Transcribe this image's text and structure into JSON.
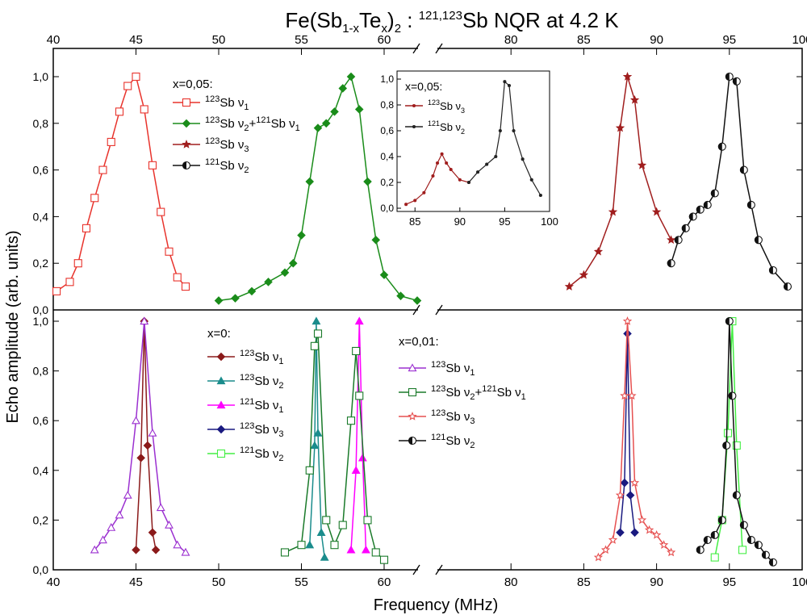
{
  "chart_data": {
    "type": "line",
    "title": {
      "main": "Fe(Sb",
      "sub1": "1-x",
      "mid": "Te",
      "sub2": "x",
      "close": ")",
      "sub3": "2",
      "colon": " : ",
      "sup": "121,123",
      "rest": "Sb NQR at 4.2 K"
    },
    "xlabel": "Frequency (MHz)",
    "ylabel": "Echo amplitude  (arb. units)",
    "axis_break": {
      "left_range": [
        40,
        62
      ],
      "right_range": [
        75,
        100
      ]
    },
    "x_ticks_left": [
      40,
      45,
      50,
      55,
      60
    ],
    "x_ticks_right": [
      80,
      85,
      90,
      95,
      100
    ],
    "y_ticks": [
      "0,0",
      "0,2",
      "0,4",
      "0,6",
      "0,8",
      "1,0"
    ],
    "panels": [
      {
        "name": "top",
        "legend_title": "x=0,05:",
        "legend": [
          {
            "pre": "123",
            "main": "Sb ν",
            "sub": "1",
            "extra": ""
          },
          {
            "pre": "123",
            "main": "Sb ν",
            "sub": "2",
            "extra": "+121Sb ν1"
          },
          {
            "pre": "123",
            "main": "Sb ν",
            "sub": "3",
            "extra": ""
          },
          {
            "pre": "121",
            "main": "Sb ν",
            "sub": "2",
            "extra": ""
          }
        ],
        "series": [
          {
            "color": "#e8332c",
            "marker": "square-open",
            "x": [
              40.2,
              41,
              41.5,
              42,
              42.5,
              43,
              43.5,
              44,
              44.5,
              45,
              45.5,
              46,
              46.5,
              47,
              47.5,
              48
            ],
            "y": [
              0.08,
              0.12,
              0.2,
              0.35,
              0.48,
              0.6,
              0.72,
              0.85,
              0.96,
              1.0,
              0.86,
              0.62,
              0.42,
              0.25,
              0.14,
              0.1
            ]
          },
          {
            "color": "#1a8c1a",
            "marker": "diamond",
            "x": [
              50,
              51,
              52,
              53,
              54,
              54.5,
              55,
              55.5,
              56,
              56.5,
              57,
              57.5,
              58,
              58.5,
              59,
              59.5,
              60,
              61,
              62
            ],
            "y": [
              0.04,
              0.05,
              0.08,
              0.12,
              0.16,
              0.2,
              0.32,
              0.55,
              0.78,
              0.8,
              0.85,
              0.95,
              1.0,
              0.86,
              0.55,
              0.3,
              0.15,
              0.06,
              0.04
            ]
          },
          {
            "color": "#a01e1e",
            "marker": "star",
            "x": [
              84,
              85,
              86,
              87,
              87.5,
              88,
              88.5,
              89,
              90,
              91
            ],
            "y": [
              0.1,
              0.15,
              0.25,
              0.42,
              0.78,
              1.0,
              0.9,
              0.62,
              0.42,
              0.3
            ]
          },
          {
            "color": "#111111",
            "marker": "circle-half",
            "x": [
              91,
              91.5,
              92,
              92.5,
              93,
              93.5,
              94,
              94.5,
              95,
              95.5,
              96,
              96.5,
              97,
              98,
              99
            ],
            "y": [
              0.2,
              0.3,
              0.35,
              0.4,
              0.43,
              0.45,
              0.5,
              0.7,
              1.0,
              0.98,
              0.6,
              0.45,
              0.3,
              0.17,
              0.1
            ]
          }
        ]
      },
      {
        "name": "bottom",
        "legend_title": "x=0:",
        "legend": [
          {
            "pre": "123",
            "main": "Sb ν",
            "sub": "1",
            "extra": ""
          },
          {
            "pre": "123",
            "main": "Sb ν",
            "sub": "2",
            "extra": ""
          },
          {
            "pre": "121",
            "main": "Sb ν",
            "sub": "1",
            "extra": ""
          },
          {
            "pre": "123",
            "main": "Sb ν",
            "sub": "3",
            "extra": ""
          },
          {
            "pre": "121",
            "main": "Sb ν",
            "sub": "2",
            "extra": ""
          }
        ],
        "legend2_title": "x=0,01:",
        "legend2": [
          {
            "pre": "123",
            "main": "Sb ν",
            "sub": "1",
            "extra": ""
          },
          {
            "pre": "123",
            "main": "Sb ν",
            "sub": "2",
            "extra": "+121Sb ν1"
          },
          {
            "pre": "123",
            "main": "Sb ν",
            "sub": "3",
            "extra": ""
          },
          {
            "pre": "121",
            "main": "Sb ν",
            "sub": "2",
            "extra": ""
          }
        ],
        "series": [
          {
            "color": "#8b1a1a",
            "marker": "diamond",
            "x": [
              45,
              45.3,
              45.5,
              45.7,
              46,
              46.2
            ],
            "y": [
              0.08,
              0.45,
              1.0,
              0.5,
              0.15,
              0.08
            ]
          },
          {
            "color": "#1a8c8c",
            "marker": "triangle",
            "x": [
              55.5,
              55.8,
              55.9,
              56.0,
              56.2,
              56.4
            ],
            "y": [
              0.1,
              0.5,
              1.0,
              0.55,
              0.15,
              0.05
            ]
          },
          {
            "color": "#ff00ff",
            "marker": "triangle",
            "x": [
              58,
              58.3,
              58.5,
              58.7,
              58.9
            ],
            "y": [
              0.08,
              0.4,
              1.0,
              0.45,
              0.08
            ]
          },
          {
            "color": "#1a1a80",
            "marker": "diamond",
            "x": [
              87.5,
              87.8,
              88.0,
              88.2,
              88.5
            ],
            "y": [
              0.15,
              0.35,
              0.95,
              0.3,
              0.15
            ]
          },
          {
            "color": "#44ee44",
            "marker": "square-open",
            "x": [
              94,
              94.5,
              94.9,
              95.2,
              95.5,
              95.9
            ],
            "y": [
              0.05,
              0.2,
              0.55,
              1.0,
              0.5,
              0.08
            ]
          },
          {
            "color": "#9b30d0",
            "marker": "triangle-open",
            "x": [
              42.5,
              43,
              43.5,
              44,
              44.5,
              45,
              45.5,
              46,
              46.5,
              47,
              47.5,
              48
            ],
            "y": [
              0.08,
              0.12,
              0.17,
              0.22,
              0.3,
              0.6,
              1.0,
              0.55,
              0.25,
              0.18,
              0.1,
              0.07
            ]
          },
          {
            "color": "#1a7a2a",
            "marker": "square-open",
            "x": [
              54,
              55,
              55.5,
              55.8,
              56,
              56.5,
              57,
              57.5,
              58,
              58.3,
              58.5,
              59,
              59.5,
              60
            ],
            "y": [
              0.07,
              0.1,
              0.4,
              0.9,
              0.95,
              0.2,
              0.1,
              0.18,
              0.6,
              0.88,
              0.7,
              0.2,
              0.07,
              0.04
            ]
          },
          {
            "color": "#e65050",
            "marker": "star-open",
            "x": [
              86,
              86.5,
              87,
              87.5,
              87.8,
              88,
              88.3,
              88.5,
              89,
              89.5,
              90,
              90.5,
              91
            ],
            "y": [
              0.05,
              0.08,
              0.12,
              0.3,
              0.7,
              1.0,
              0.7,
              0.35,
              0.2,
              0.16,
              0.14,
              0.1,
              0.07
            ]
          },
          {
            "color": "#111111",
            "marker": "circle-half",
            "x": [
              93,
              93.5,
              94,
              94.5,
              94.8,
              95,
              95.2,
              95.5,
              96,
              96.5,
              97,
              97.5,
              98
            ],
            "y": [
              0.08,
              0.12,
              0.14,
              0.2,
              0.5,
              1.0,
              0.7,
              0.3,
              0.18,
              0.12,
              0.1,
              0.06,
              0.03
            ]
          }
        ]
      }
    ],
    "inset": {
      "legend_title": "x=0,05:",
      "legend": [
        {
          "pre": "123",
          "main": "Sb ν",
          "sub": "3",
          "extra": ""
        },
        {
          "pre": "121",
          "main": "Sb ν",
          "sub": "2",
          "extra": ""
        }
      ],
      "x_ticks": [
        85,
        90,
        95,
        100
      ],
      "y_ticks": [
        "0,0",
        "0,2",
        "0,4",
        "0,6",
        "0,8",
        "1,0"
      ],
      "series": [
        {
          "color": "#a01e1e",
          "marker": "dot",
          "x": [
            84,
            85,
            86,
            87,
            87.5,
            88,
            88.5,
            89,
            90,
            91
          ],
          "y": [
            0.03,
            0.06,
            0.12,
            0.25,
            0.35,
            0.42,
            0.35,
            0.3,
            0.22,
            0.2
          ]
        },
        {
          "color": "#222222",
          "marker": "dot",
          "x": [
            91,
            92,
            93,
            94,
            94.5,
            95,
            95.5,
            96,
            97,
            98,
            99
          ],
          "y": [
            0.2,
            0.28,
            0.34,
            0.4,
            0.6,
            0.98,
            0.95,
            0.6,
            0.38,
            0.22,
            0.1
          ]
        }
      ]
    }
  }
}
